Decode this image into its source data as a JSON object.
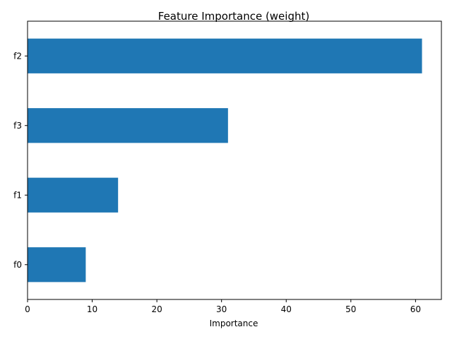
{
  "chart_data": {
    "type": "bar",
    "orientation": "horizontal",
    "title": "Feature Importance (weight)",
    "xlabel": "Importance",
    "ylabel": "",
    "categories": [
      "f0",
      "f1",
      "f3",
      "f2"
    ],
    "values": [
      9,
      14,
      31,
      61
    ],
    "xlim": [
      0,
      64
    ],
    "xticks": [
      0,
      10,
      20,
      30,
      40,
      50,
      60
    ],
    "grid": false,
    "bar_color": "#1f77b4"
  }
}
